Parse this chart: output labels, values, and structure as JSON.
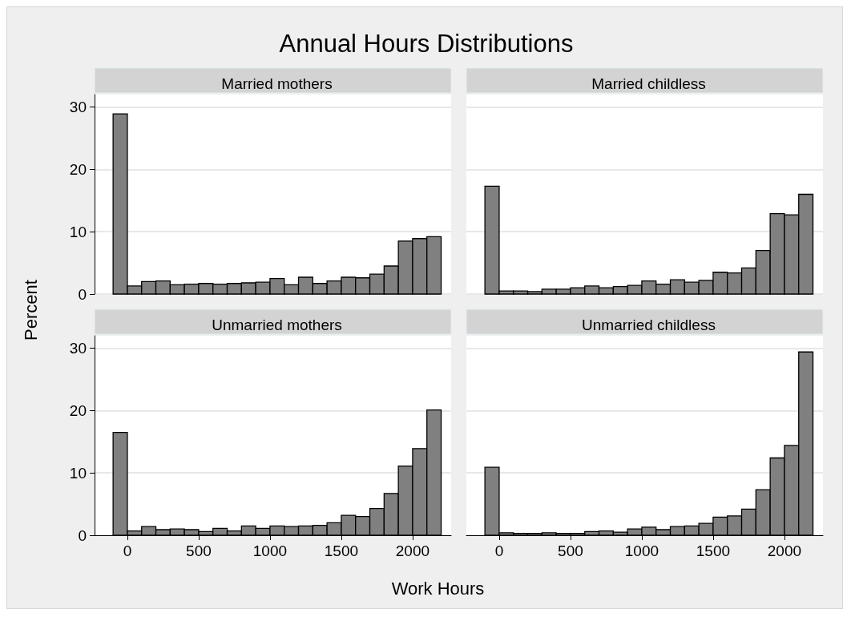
{
  "chart_data": [
    {
      "type": "histogram",
      "title": "Married mothers",
      "annotations": [
        "Annual Hours Distributions"
      ],
      "ylabel": "Percent",
      "bins": [
        -100,
        0,
        100,
        200,
        300,
        400,
        500,
        600,
        700,
        800,
        900,
        1000,
        1100,
        1200,
        1300,
        1400,
        1500,
        1600,
        1700,
        1800,
        1900,
        2000,
        2100,
        2200
      ],
      "values": [
        28.9,
        1.3,
        2.0,
        2.1,
        1.5,
        1.6,
        1.7,
        1.6,
        1.7,
        1.8,
        1.9,
        2.5,
        1.5,
        2.7,
        1.7,
        2.1,
        2.7,
        2.6,
        3.2,
        4.5,
        8.5,
        8.9,
        9.2
      ],
      "color": "#808080",
      "xlim": [
        -230,
        2270
      ],
      "ylim": [
        0,
        32
      ],
      "xticks": [
        0,
        500,
        1000,
        1500,
        2000
      ],
      "yticks": [
        0,
        10,
        20,
        30
      ],
      "grid": "y",
      "tick_labels": "y"
    },
    {
      "type": "histogram",
      "title": "Married childless",
      "bins": [
        -100,
        0,
        100,
        200,
        300,
        400,
        500,
        600,
        700,
        800,
        900,
        1000,
        1100,
        1200,
        1300,
        1400,
        1500,
        1600,
        1700,
        1800,
        1900,
        2000,
        2100,
        2200
      ],
      "values": [
        17.3,
        0.5,
        0.5,
        0.4,
        0.8,
        0.8,
        1.0,
        1.3,
        1.0,
        1.2,
        1.4,
        2.1,
        1.6,
        2.3,
        1.9,
        2.2,
        3.5,
        3.4,
        4.2,
        7.0,
        12.9,
        12.7,
        16.0
      ],
      "color": "#808080",
      "xlim": [
        -230,
        2270
      ],
      "ylim": [
        0,
        32
      ],
      "xticks": [
        0,
        500,
        1000,
        1500,
        2000
      ],
      "yticks": [
        0,
        10,
        20,
        30
      ],
      "grid": "y",
      "tick_labels": false
    },
    {
      "type": "histogram",
      "title": "Unmarried mothers",
      "xlabel": "Work Hours",
      "bins": [
        -100,
        0,
        100,
        200,
        300,
        400,
        500,
        600,
        700,
        800,
        900,
        1000,
        1100,
        1200,
        1300,
        1400,
        1500,
        1600,
        1700,
        1800,
        1900,
        2000,
        2100,
        2200
      ],
      "values": [
        16.5,
        0.7,
        1.4,
        0.9,
        1.0,
        0.9,
        0.6,
        1.1,
        0.7,
        1.5,
        1.1,
        1.5,
        1.4,
        1.5,
        1.6,
        2.0,
        3.2,
        3.0,
        4.3,
        6.7,
        11.1,
        13.9,
        20.1
      ],
      "color": "#808080",
      "xlim": [
        -230,
        2270
      ],
      "ylim": [
        0,
        32
      ],
      "xticks": [
        0,
        500,
        1000,
        1500,
        2000
      ],
      "yticks": [
        0,
        10,
        20,
        30
      ],
      "grid": "y"
    },
    {
      "type": "histogram",
      "title": "Unmarried childless",
      "bins": [
        -100,
        0,
        100,
        200,
        300,
        400,
        500,
        600,
        700,
        800,
        900,
        1000,
        1100,
        1200,
        1300,
        1400,
        1500,
        1600,
        1700,
        1800,
        1900,
        2000,
        2100,
        2200
      ],
      "values": [
        10.9,
        0.4,
        0.3,
        0.3,
        0.4,
        0.3,
        0.3,
        0.6,
        0.7,
        0.5,
        1.0,
        1.3,
        0.9,
        1.4,
        1.5,
        1.9,
        2.9,
        3.1,
        4.2,
        7.3,
        12.4,
        14.4,
        29.4
      ],
      "color": "#808080",
      "xlim": [
        -230,
        2270
      ],
      "ylim": [
        0,
        32
      ],
      "xticks": [
        0,
        500,
        1000,
        1500,
        2000
      ],
      "yticks": [
        0,
        10,
        20,
        30
      ],
      "grid": "y",
      "tick_labels": "x"
    }
  ]
}
